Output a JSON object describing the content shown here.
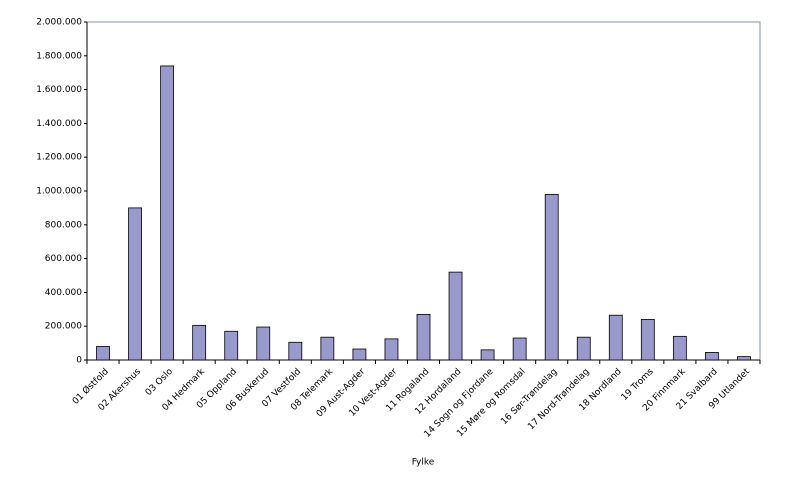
{
  "chart_data": {
    "type": "bar",
    "x_label": "Fylke",
    "categories": [
      "01 Østfold",
      "02 Akershus",
      "03 Oslo",
      "04 Hedmark",
      "05 Oppland",
      "06 Buskerud",
      "07 Vestfold",
      "08 Telemark",
      "09 Aust-Agder",
      "10 Vest-Agder",
      "11 Rogaland",
      "12 Hordaland",
      "14 Sogn og Fjordane",
      "15 Møre og Romsdal",
      "16 Sør-Trøndelag",
      "17 Nord-Trøndelag",
      "18 Nordland",
      "19 Troms",
      "20 Finnmark",
      "21 Svalbard",
      "99 Utlandet"
    ],
    "values": [
      80000,
      900000,
      1740000,
      205000,
      170000,
      195000,
      105000,
      135000,
      65000,
      125000,
      270000,
      520000,
      60000,
      130000,
      980000,
      135000,
      265000,
      240000,
      140000,
      45000,
      20000
    ],
    "color": "#9999cc",
    "ylim": [
      0,
      2000000
    ],
    "yticks": [
      {
        "value": 0,
        "label": "0"
      },
      {
        "value": 200000,
        "label": "200.000"
      },
      {
        "value": 400000,
        "label": "400.000"
      },
      {
        "value": 600000,
        "label": "600.000"
      },
      {
        "value": 800000,
        "label": "800.000"
      },
      {
        "value": 1000000,
        "label": "1.000.000"
      },
      {
        "value": 1200000,
        "label": "1.200.000"
      },
      {
        "value": 1400000,
        "label": "1.400.000"
      },
      {
        "value": 1600000,
        "label": "1.600.000"
      },
      {
        "value": 1800000,
        "label": "1.800.000"
      },
      {
        "value": 2000000,
        "label": "2.000.000"
      }
    ],
    "grid": false
  }
}
